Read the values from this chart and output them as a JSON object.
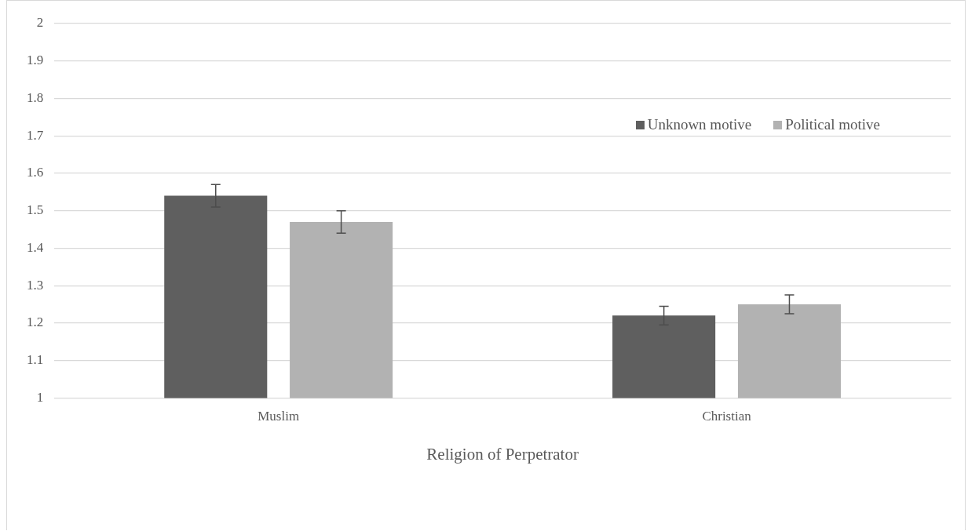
{
  "chart_data": {
    "type": "bar",
    "xlabel": "Religion of Perpetrator",
    "categories": [
      "Muslim",
      "Christian"
    ],
    "series": [
      {
        "name": "Unknown motive",
        "color": "#5f5f5f",
        "values": [
          1.54,
          1.22
        ],
        "errors": [
          0.03,
          0.025
        ]
      },
      {
        "name": "Political motive",
        "color": "#b2b2b2",
        "values": [
          1.47,
          1.25
        ],
        "errors": [
          0.03,
          0.025
        ]
      }
    ],
    "ylim": [
      1,
      2
    ],
    "yticks": [
      1,
      1.1,
      1.2,
      1.3,
      1.4,
      1.5,
      1.6,
      1.7,
      1.8,
      1.9,
      2
    ],
    "grid": "y",
    "legend": "top right"
  }
}
